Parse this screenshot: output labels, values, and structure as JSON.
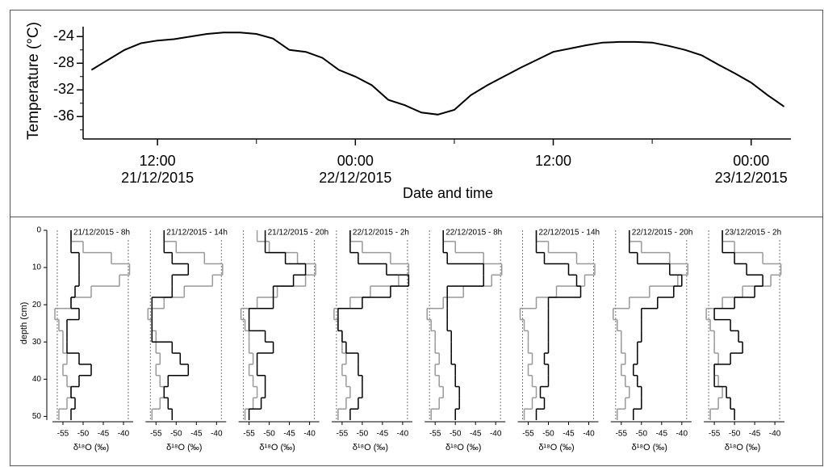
{
  "chart_data": [
    {
      "type": "line",
      "ylabel": "Temperature (°C)",
      "xlabel": "Date and time",
      "xlim": [
        "2015-12-21T07:50",
        "2015-12-23T02:10"
      ],
      "ylim": [
        -39,
        -23
      ],
      "yticks": [
        -24,
        -28,
        -32,
        -36
      ],
      "yminorticks": [
        -26,
        -30,
        -34,
        -38
      ],
      "xticks": [
        {
          "value": "2015-12-21T12:00",
          "label": [
            "12:00",
            "21/12/2015"
          ]
        },
        {
          "value": "2015-12-22T00:00",
          "label": [
            "00:00",
            "22/12/2015"
          ]
        },
        {
          "value": "2015-12-22T12:00",
          "label": [
            "12:00",
            ""
          ]
        },
        {
          "value": "2015-12-23T00:00",
          "label": [
            "00:00",
            "23/12/2015"
          ]
        }
      ],
      "xminorticks": [
        "2015-12-21T18:00",
        "2015-12-22T06:00",
        "2015-12-22T18:00"
      ],
      "x": [
        "2015-12-21T08:00",
        "2015-12-21T09:00",
        "2015-12-21T10:00",
        "2015-12-21T11:00",
        "2015-12-21T12:00",
        "2015-12-21T13:00",
        "2015-12-21T14:00",
        "2015-12-21T15:00",
        "2015-12-21T16:00",
        "2015-12-21T17:00",
        "2015-12-21T18:00",
        "2015-12-21T19:00",
        "2015-12-21T20:00",
        "2015-12-21T21:00",
        "2015-12-21T22:00",
        "2015-12-21T23:00",
        "2015-12-22T00:00",
        "2015-12-22T01:00",
        "2015-12-22T02:00",
        "2015-12-22T03:00",
        "2015-12-22T04:00",
        "2015-12-22T05:00",
        "2015-12-22T06:00",
        "2015-12-22T07:00",
        "2015-12-22T08:00",
        "2015-12-22T09:00",
        "2015-12-22T10:00",
        "2015-12-22T11:00",
        "2015-12-22T12:00",
        "2015-12-22T13:00",
        "2015-12-22T14:00",
        "2015-12-22T15:00",
        "2015-12-22T16:00",
        "2015-12-22T17:00",
        "2015-12-22T18:00",
        "2015-12-22T19:00",
        "2015-12-22T20:00",
        "2015-12-22T21:00",
        "2015-12-22T22:00",
        "2015-12-22T23:00",
        "2015-12-23T00:00",
        "2015-12-23T01:00",
        "2015-12-23T02:00"
      ],
      "series": [
        {
          "color": "#000000",
          "values": [
            -29,
            -27.5,
            -26,
            -25,
            -24.6,
            -24.4,
            -24,
            -23.6,
            -23.4,
            -23.4,
            -23.6,
            -24.3,
            -26,
            -26.3,
            -27.2,
            -29,
            -30,
            -31.3,
            -33.5,
            -34.3,
            -35.4,
            -35.7,
            -35,
            -32.8,
            -31.3,
            -30,
            -28.7,
            -27.5,
            -26.3,
            -25.8,
            -25.3,
            -24.9,
            -24.8,
            -24.8,
            -24.9,
            -25.4,
            -26,
            -26.8,
            -28.2,
            -29.5,
            -30.9,
            -32.8,
            -34.5
          ]
        }
      ]
    },
    {
      "type": "step-profile",
      "ylabel": "depth (cm)",
      "ylim": [
        0,
        51
      ],
      "yticks": [
        0,
        10,
        20,
        30,
        40,
        50
      ],
      "xlim": [
        -58,
        -38
      ],
      "xticks": [
        -55,
        -50,
        -45,
        -40
      ],
      "depth_bins": [
        0,
        3,
        6,
        9,
        12,
        15,
        18,
        21,
        24,
        27,
        30,
        33,
        36,
        39,
        42,
        45,
        48,
        51
      ],
      "reference": {
        "color": "#999999",
        "values": [
          -53,
          -50,
          -43,
          -38.5,
          -41,
          -48,
          -53,
          -57,
          -56,
          -55,
          -55,
          -54,
          -55,
          -54,
          -53,
          -54,
          -56
        ]
      },
      "panels": [
        {
          "title": "21/12/2015 - 8h",
          "xlabel": "δ¹⁸O (‰)",
          "color": "#000000",
          "values": [
            -53,
            -53,
            -51,
            -51,
            -51,
            -52,
            -53,
            -51,
            -54,
            -54,
            -54,
            -51,
            -48,
            -51,
            -53,
            -52,
            -53
          ]
        },
        {
          "title": "21/12/2015 - 14h",
          "xlabel": "δ¹⁸O (‰)",
          "color": "#000000",
          "values": [
            -53,
            -53,
            -51,
            -47,
            -51,
            -51,
            -56,
            -56,
            -56,
            -56,
            -51,
            -49,
            -47,
            -52,
            -53,
            -52,
            -51
          ]
        },
        {
          "title": "21/12/2015 - 20h",
          "xlabel": "δ¹⁸O (‰)",
          "color": "#000000",
          "values": [
            -51,
            -51,
            -46,
            -41,
            -44,
            -49,
            -49,
            -55,
            -55,
            -51,
            -49,
            -53,
            -53,
            -51,
            -51,
            -52,
            -55
          ]
        },
        {
          "title": "22/12/2015 - 2h",
          "xlabel": "δ¹⁸O (‰)",
          "color": "#000000",
          "values": [
            -53,
            -53,
            -51,
            -44,
            -38.5,
            -43,
            -50,
            -56,
            -56,
            -55,
            -54,
            -51,
            -51,
            -50,
            -50,
            -51,
            -53
          ]
        },
        {
          "title": "22/12/2015 - 8h",
          "xlabel": "δ¹⁸O (‰)",
          "color": "#000000",
          "values": [
            -53,
            -53,
            -52,
            -43,
            -43,
            -52,
            -52,
            -52,
            -52,
            -51,
            -51,
            -51,
            -50,
            -50,
            -49,
            -49,
            -50
          ]
        },
        {
          "title": "22/12/2015 - 14h",
          "xlabel": "δ¹⁸O (‰)",
          "color": "#000000",
          "values": [
            -53,
            -53,
            -51,
            -45,
            -43,
            -42,
            -50,
            -50,
            -50,
            -50,
            -50,
            -51,
            -50,
            -50,
            -52,
            -51,
            -53
          ]
        },
        {
          "title": "22/12/2015 - 20h",
          "xlabel": "δ¹⁸O (‰)",
          "color": "#000000",
          "values": [
            -53,
            -53,
            -51,
            -43,
            -40,
            -42,
            -46,
            -50,
            -50,
            -50,
            -51,
            -51,
            -52,
            -51,
            -50,
            -50,
            -52
          ]
        },
        {
          "title": "23/12/2015 - 2h",
          "xlabel": "δ¹⁸O (‰)",
          "color": "#000000",
          "values": [
            -53,
            -53,
            -50,
            -47,
            -43,
            -45,
            -50,
            -55,
            -51,
            -49,
            -48,
            -51,
            -55,
            -55,
            -52,
            -51,
            -50
          ]
        }
      ]
    }
  ]
}
